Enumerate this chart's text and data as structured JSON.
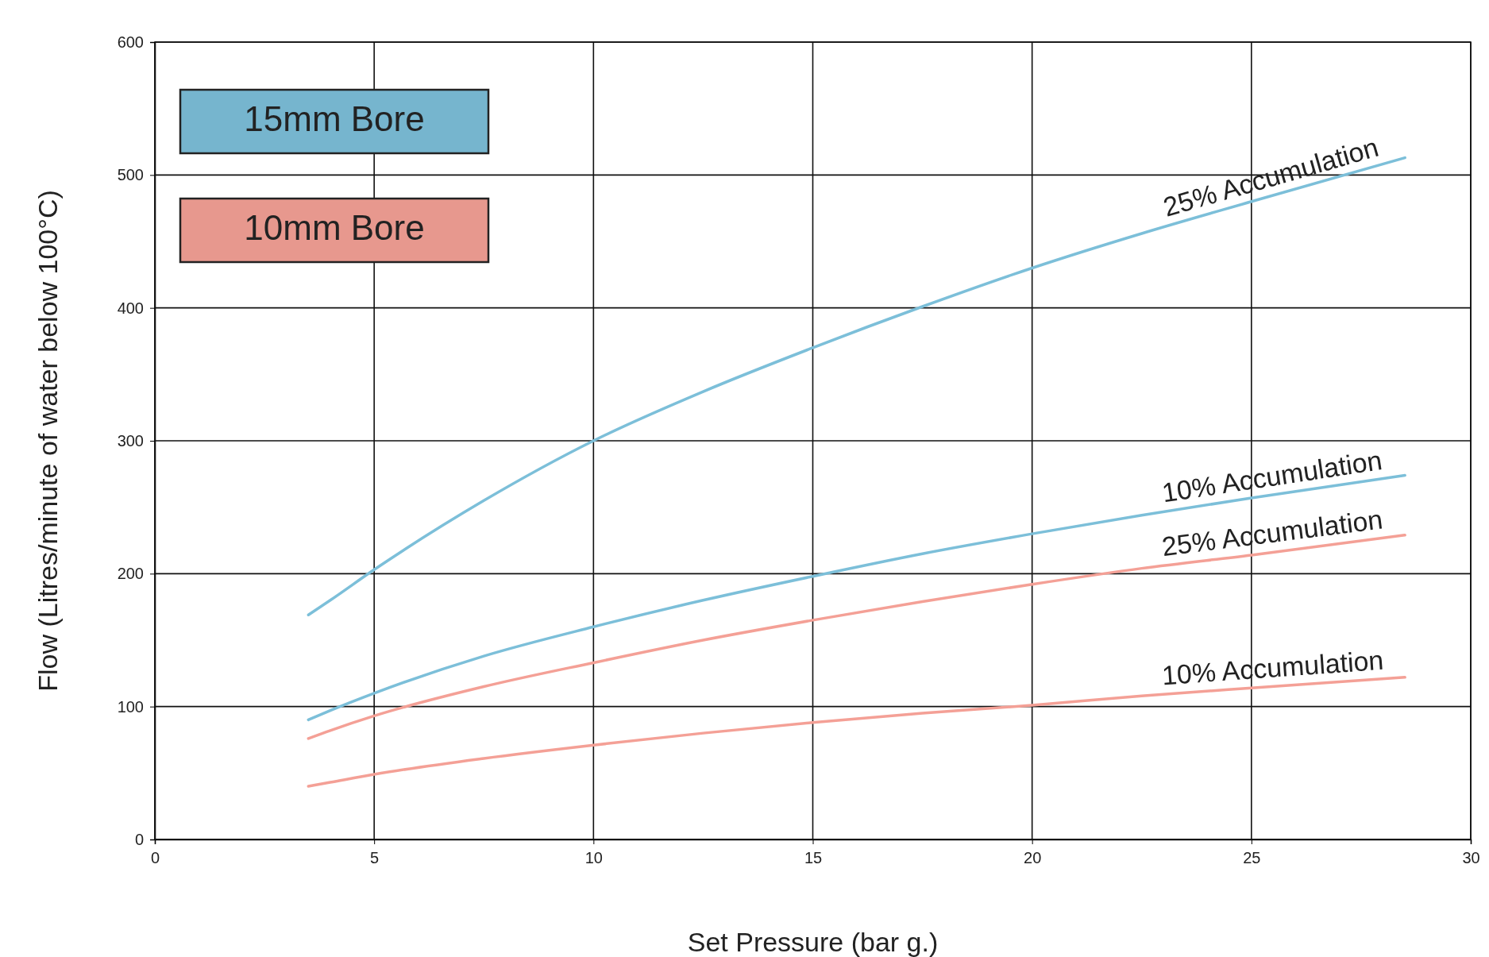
{
  "chart_data": {
    "type": "line",
    "xlabel": "Set Pressure (bar g.)",
    "ylabel": "Flow (Litres/minute of water below 100°C)",
    "xlim": [
      0,
      30
    ],
    "xticks": [
      0,
      5,
      10,
      15,
      20,
      25,
      30
    ],
    "ylim": [
      0,
      600
    ],
    "yticks": [
      0,
      100,
      200,
      300,
      400,
      500,
      600
    ],
    "grid": true,
    "line_style": "solid",
    "marker": "none",
    "annotations": [
      "15mm Bore",
      "10mm Bore"
    ],
    "x": [
      3.5,
      4,
      5,
      7.5,
      10,
      12.5,
      15,
      17.5,
      20,
      22.5,
      25,
      28.5
    ],
    "series": [
      {
        "name": "25% Accumulation",
        "color": "#7cbfd9",
        "values": [
          169,
          180,
          203,
          255,
          300,
          337,
          370,
          401,
          430,
          456,
          480,
          513
        ]
      },
      {
        "name": "10% Accumulation",
        "color": "#7cbfd9",
        "values": [
          90,
          97,
          110,
          138,
          160,
          180,
          198,
          215,
          230,
          244,
          257,
          274
        ]
      },
      {
        "name": "25% Accumulation",
        "color": "#f4a096",
        "values": [
          76,
          82,
          93,
          115,
          133,
          150,
          165,
          179,
          192,
          204,
          214,
          229
        ]
      },
      {
        "name": "10% Accumulation",
        "color": "#f4a096",
        "values": [
          40,
          43,
          49,
          61,
          71,
          80,
          88,
          95,
          101,
          108,
          114,
          122
        ]
      }
    ]
  }
}
